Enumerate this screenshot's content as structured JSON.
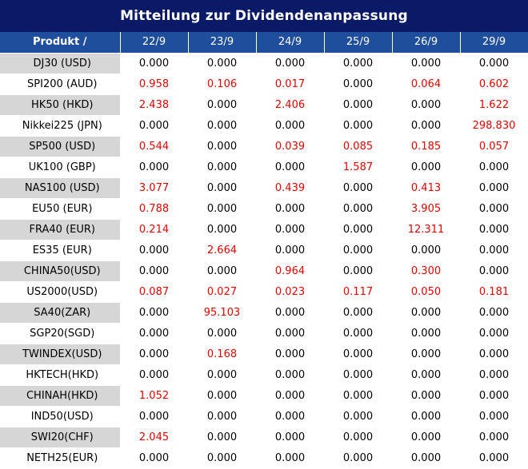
{
  "title": "Mitteilung zur Dividendenanpassung",
  "header": {
    "product_label": "Produkt /",
    "dates": [
      "22/9",
      "23/9",
      "24/9",
      "25/9",
      "26/9",
      "29/9"
    ]
  },
  "colors": {
    "title_bg": "#0b1a66",
    "header_bg": "#1f4e9c",
    "positive": "#ee0000"
  },
  "rows": [
    {
      "product": "DJ30 (USD)",
      "values": [
        "0.000",
        "0.000",
        "0.000",
        "0.000",
        "0.000",
        "0.000"
      ]
    },
    {
      "product": "SPI200 (AUD)",
      "values": [
        "0.958",
        "0.106",
        "0.017",
        "0.000",
        "0.064",
        "0.602"
      ]
    },
    {
      "product": "HK50 (HKD)",
      "values": [
        "2.438",
        "0.000",
        "2.406",
        "0.000",
        "0.000",
        "1.622"
      ]
    },
    {
      "product": "Nikkei225 (JPN)",
      "values": [
        "0.000",
        "0.000",
        "0.000",
        "0.000",
        "0.000",
        "298.830"
      ]
    },
    {
      "product": "SP500 (USD)",
      "values": [
        "0.544",
        "0.000",
        "0.039",
        "0.085",
        "0.185",
        "0.057"
      ]
    },
    {
      "product": "UK100 (GBP)",
      "values": [
        "0.000",
        "0.000",
        "0.000",
        "1.587",
        "0.000",
        "0.000"
      ]
    },
    {
      "product": "NAS100 (USD)",
      "values": [
        "3.077",
        "0.000",
        "0.439",
        "0.000",
        "0.413",
        "0.000"
      ]
    },
    {
      "product": "EU50 (EUR)",
      "values": [
        "0.788",
        "0.000",
        "0.000",
        "0.000",
        "3.905",
        "0.000"
      ]
    },
    {
      "product": "FRA40 (EUR)",
      "values": [
        "0.214",
        "0.000",
        "0.000",
        "0.000",
        "12.311",
        "0.000"
      ]
    },
    {
      "product": "ES35 (EUR)",
      "values": [
        "0.000",
        "2.664",
        "0.000",
        "0.000",
        "0.000",
        "0.000"
      ]
    },
    {
      "product": "CHINA50(USD)",
      "values": [
        "0.000",
        "0.000",
        "0.964",
        "0.000",
        "0.300",
        "0.000"
      ]
    },
    {
      "product": "US2000(USD)",
      "values": [
        "0.087",
        "0.027",
        "0.023",
        "0.117",
        "0.050",
        "0.181"
      ]
    },
    {
      "product": "SA40(ZAR)",
      "values": [
        "0.000",
        "95.103",
        "0.000",
        "0.000",
        "0.000",
        "0.000"
      ]
    },
    {
      "product": "SGP20(SGD)",
      "values": [
        "0.000",
        "0.000",
        "0.000",
        "0.000",
        "0.000",
        "0.000"
      ]
    },
    {
      "product": "TWINDEX(USD)",
      "values": [
        "0.000",
        "0.168",
        "0.000",
        "0.000",
        "0.000",
        "0.000"
      ]
    },
    {
      "product": "HKTECH(HKD)",
      "values": [
        "0.000",
        "0.000",
        "0.000",
        "0.000",
        "0.000",
        "0.000"
      ]
    },
    {
      "product": "CHINAH(HKD)",
      "values": [
        "1.052",
        "0.000",
        "0.000",
        "0.000",
        "0.000",
        "0.000"
      ]
    },
    {
      "product": "IND50(USD)",
      "values": [
        "0.000",
        "0.000",
        "0.000",
        "0.000",
        "0.000",
        "0.000"
      ]
    },
    {
      "product": "SWI20(CHF)",
      "values": [
        "2.045",
        "0.000",
        "0.000",
        "0.000",
        "0.000",
        "0.000"
      ]
    },
    {
      "product": "NETH25(EUR)",
      "values": [
        "0.000",
        "0.000",
        "0.000",
        "0.000",
        "0.000",
        "0.000"
      ]
    }
  ]
}
